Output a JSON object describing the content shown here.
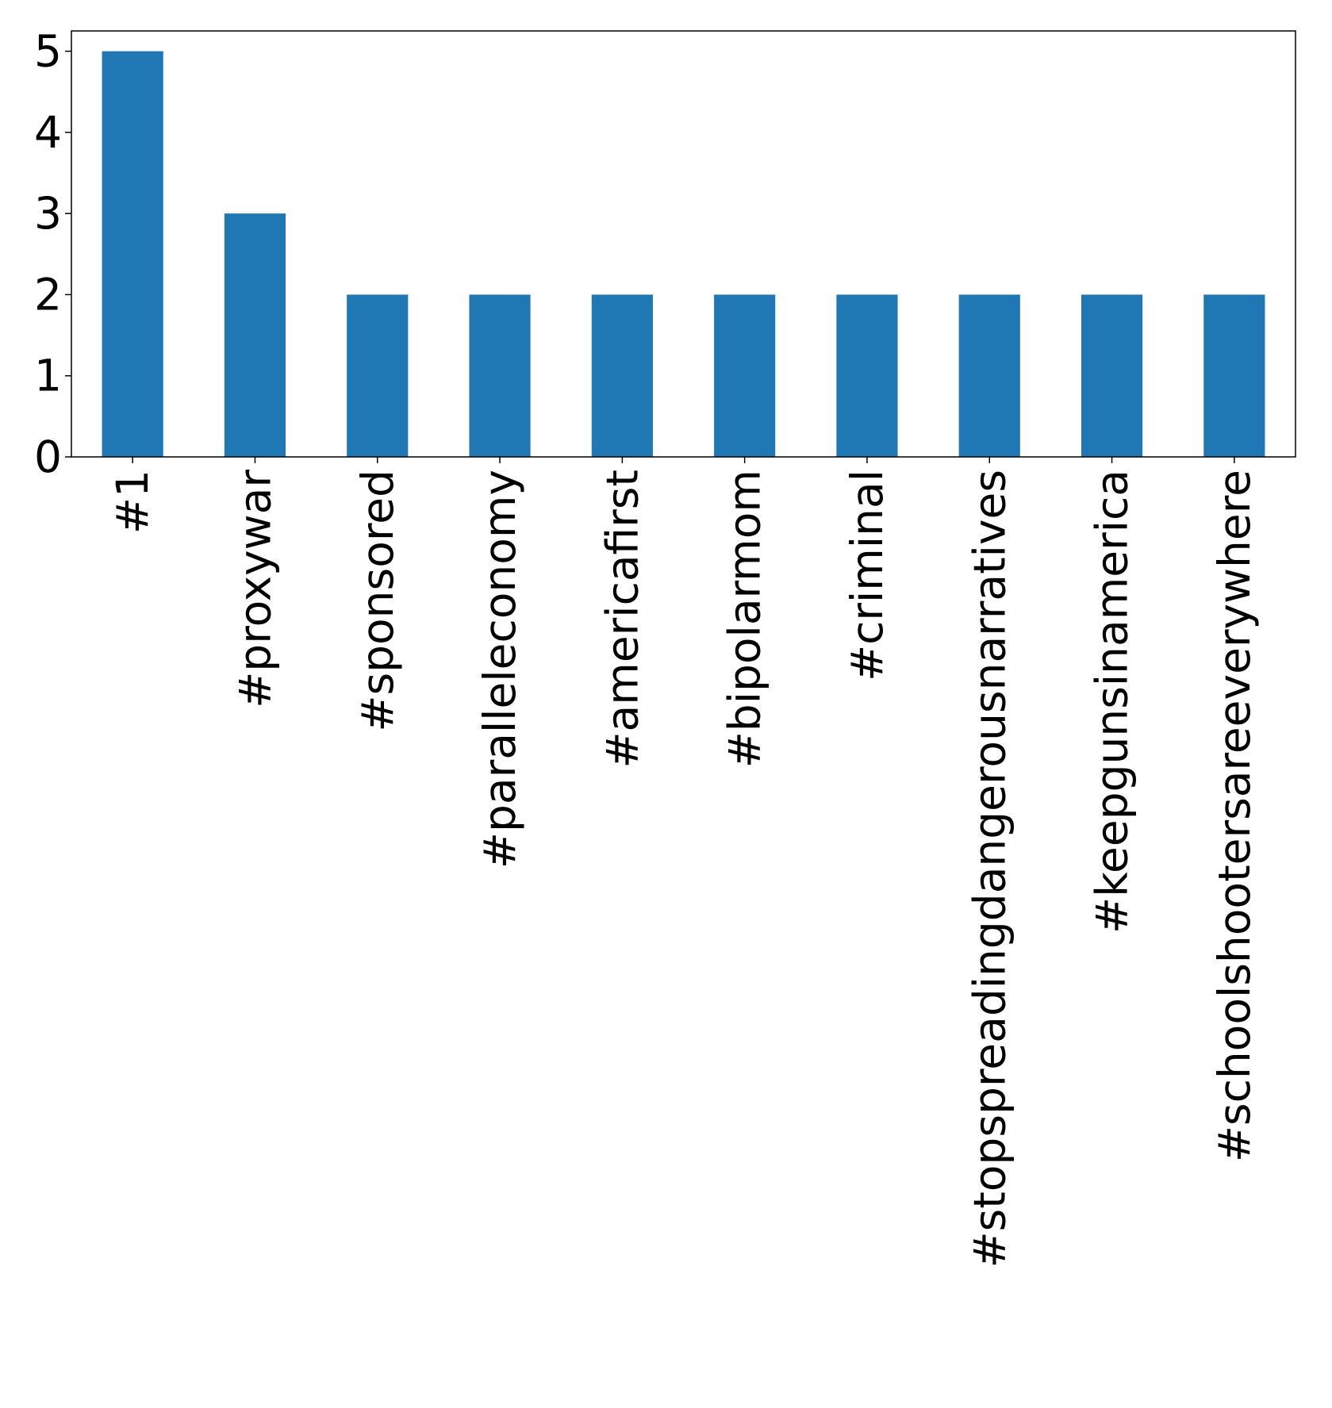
{
  "chart_data": {
    "type": "bar",
    "title": "",
    "xlabel": "",
    "ylabel": "",
    "categories": [
      "#1",
      "#proxywar",
      "#sponsored",
      "#paralleleconomy",
      "#americafirst",
      "#bipolarmom",
      "#criminal",
      "#stopspreadingdangerousnarratives",
      "#keepgunsinamerica",
      "#schoolshootersareeverywhere"
    ],
    "values": [
      5,
      3,
      2,
      2,
      2,
      2,
      2,
      2,
      2,
      2
    ],
    "ylim": [
      0,
      5.25
    ],
    "yticks": [
      "0",
      "1",
      "2",
      "3",
      "4",
      "5"
    ],
    "grid": false,
    "legend": "none",
    "colors": {
      "bar": "#1f77b4",
      "axis": "#000000",
      "background": "#ffffff"
    }
  }
}
